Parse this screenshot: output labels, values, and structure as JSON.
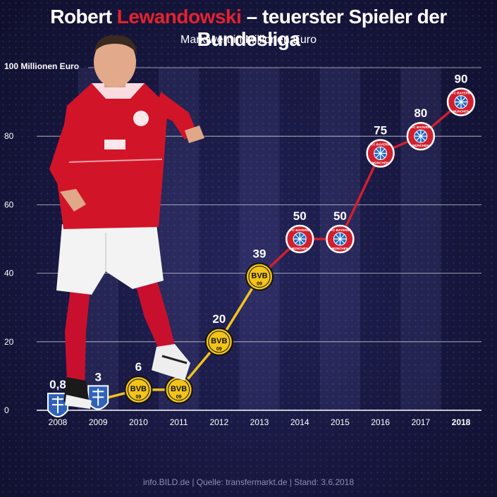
{
  "header": {
    "title_name": "Robert",
    "title_highlight": "Lewandowski",
    "title_rest": "– teuerster Spieler der Bundesliga",
    "subtitle": "Marktwert in Millionen Euro"
  },
  "footer": {
    "source": "info.BILD.de | Quelle: transfermarkt.de | Stand: 3.6.2018"
  },
  "colors": {
    "line_lech": "#3a5aa8",
    "line_bvb": "#f2c419",
    "line_bayern": "#d0202e",
    "title_highlight": "#e4222e",
    "background": "#17173f"
  },
  "chart_data": {
    "type": "line",
    "title": "Robert Lewandowski – teuerster Spieler der Bundesliga",
    "subtitle": "Marktwert in Millionen Euro",
    "ylabel": "100 Millionen Euro",
    "ylim": [
      0,
      100
    ],
    "yticks": [
      "0",
      "20",
      "40",
      "60",
      "80"
    ],
    "grid": true,
    "categories": [
      "2008",
      "2009",
      "2010",
      "2011",
      "2012",
      "2013",
      "2014",
      "2015",
      "2016",
      "2017",
      "2018"
    ],
    "values": [
      0.8,
      3,
      6,
      6,
      20,
      39,
      50,
      50,
      75,
      80,
      90
    ],
    "value_labels": [
      "0,8",
      "3",
      "6",
      "",
      "20",
      "39",
      "50",
      "50",
      "75",
      "80",
      "90"
    ],
    "clubs": [
      "lech",
      "lech",
      "bvb",
      "bvb",
      "bvb",
      "bvb",
      "bayern",
      "bayern",
      "bayern",
      "bayern",
      "bayern"
    ],
    "badges": {
      "bvb_top": "BVB",
      "bvb_bottom": "09",
      "bayern_top": "FC BAYERN",
      "bayern_bottom": "MÜNCHEN"
    }
  }
}
